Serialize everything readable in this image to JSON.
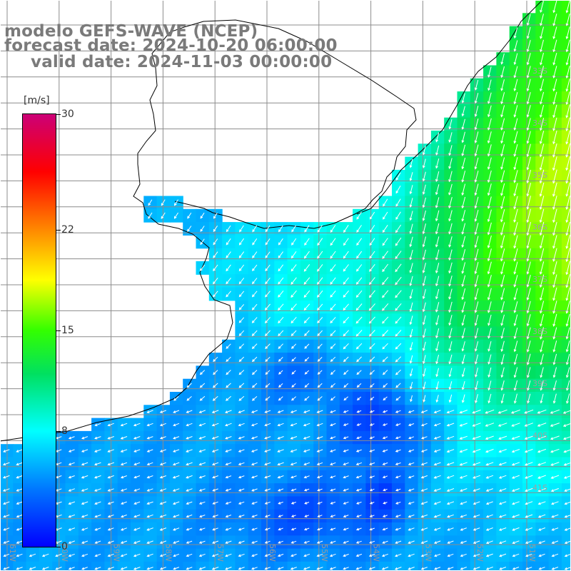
{
  "title": {
    "line1": "modelo GEFS-WAVE (NCEP)",
    "line2": "forecast date: 2024-10-20 06:00:00",
    "line3": "valid date: 2024-11-03 00:00:00"
  },
  "colorbar": {
    "unit": "[m/s]",
    "min": 0,
    "max": 30,
    "ticks": [
      {
        "value": 30,
        "label": "30"
      },
      {
        "value": 22,
        "label": "22"
      },
      {
        "value": 15,
        "label": "15"
      },
      {
        "value": 8,
        "label": "8"
      },
      {
        "value": 0,
        "label": "0"
      }
    ],
    "stops": [
      {
        "value": 0,
        "color": "#0000ff"
      },
      {
        "value": 4,
        "color": "#0077ff"
      },
      {
        "value": 8,
        "color": "#00ffff"
      },
      {
        "value": 12,
        "color": "#00e060"
      },
      {
        "value": 15,
        "color": "#33ff00"
      },
      {
        "value": 18.5,
        "color": "#ffff00"
      },
      {
        "value": 22,
        "color": "#ff8800"
      },
      {
        "value": 26,
        "color": "#ff0000"
      },
      {
        "value": 30,
        "color": "#cc0077"
      }
    ]
  },
  "map": {
    "lon_labels": [
      "61W",
      "60W",
      "59W",
      "58W",
      "57W",
      "56W",
      "55W",
      "54W",
      "53W",
      "52W",
      "51W"
    ],
    "lat_labels": [
      "33S",
      "34S",
      "35S",
      "36S",
      "37S",
      "38S",
      "39S",
      "40S",
      "41S"
    ],
    "land_color": "#ffffff",
    "grid_color": "#8c8c8c",
    "coast_color": "#000000",
    "arrow_color": "#ffffff"
  }
}
